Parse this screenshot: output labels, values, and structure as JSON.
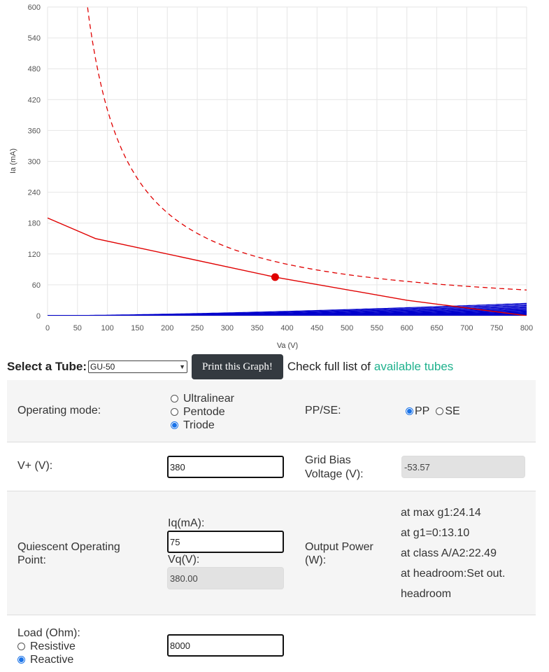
{
  "chart_data": {
    "type": "line",
    "xlabel": "Va (V)",
    "ylabel": "Ia (mA)",
    "xlim": [
      0,
      800
    ],
    "ylim": [
      0,
      600
    ],
    "x_ticks": [
      0,
      50,
      100,
      150,
      200,
      250,
      300,
      350,
      400,
      450,
      500,
      550,
      600,
      650,
      700,
      750,
      800
    ],
    "y_ticks": [
      0,
      60,
      120,
      180,
      240,
      300,
      360,
      420,
      480,
      540,
      600
    ],
    "grid": true,
    "plate_curve_color": "#0000cc",
    "load_line_color": "#e00000",
    "plate_curves": {
      "description_free": true,
      "k": 0.00106,
      "exponent": 1.5,
      "mu": 9.6,
      "grid_voltages_start": 0,
      "grid_voltages_step": -5,
      "count": 38
    },
    "load_line": [
      [
        0,
        190
      ],
      [
        80,
        150
      ],
      [
        380,
        75
      ],
      [
        600,
        30
      ],
      [
        800,
        0
      ]
    ],
    "dissipation_curve": {
      "watts": 40,
      "x_from": 65,
      "x_to": 800
    },
    "operating_point": {
      "x": 380,
      "y": 75
    }
  },
  "controls": {
    "select_label": "Select a Tube:",
    "selected_tube": "GU-50",
    "print_button": "Print this Graph!",
    "list_text": "Check full list of",
    "list_link": "available tubes"
  },
  "form": {
    "mode_label": "Operating mode:",
    "mode_options": [
      "Ultralinear",
      "Pentode",
      "Triode"
    ],
    "mode_selected": "Triode",
    "ppse_label": "PP/SE:",
    "ppse_options": [
      "PP",
      "SE"
    ],
    "ppse_selected": "PP",
    "vplus_label": "V+ (V):",
    "vplus_value": "380",
    "bias_label_1": "Grid Bias",
    "bias_label_2": "Voltage (V):",
    "bias_value": "-53.57",
    "quiescent_label_1": "Quiescent Operating",
    "quiescent_label_2": "Point:",
    "iq_label": "Iq(mA):",
    "iq_value": "75",
    "vq_label": "Vq(V):",
    "vq_value": "380.00",
    "power_label_1": "Output Power",
    "power_label_2": "(W):",
    "power_lines": [
      "at max g1:24.14",
      "at g1=0:13.10",
      "at class A/A2:22.49",
      "at headroom:Set out.",
      "headroom"
    ],
    "load_label": "Load (Ohm):",
    "load_options": [
      "Resistive",
      "Reactive"
    ],
    "load_selected": "Reactive",
    "load_value": "8000"
  }
}
